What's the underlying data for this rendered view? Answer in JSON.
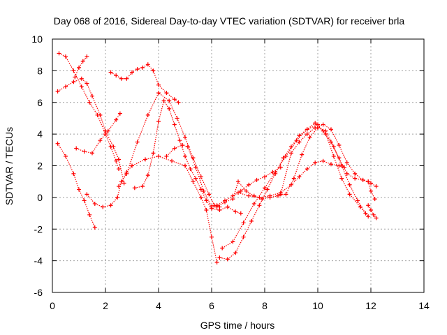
{
  "chart_data": {
    "type": "scatter",
    "title": "Day 068 of 2016, Sidereal Day-to-day VTEC variation (SDTVAR) for receiver brla",
    "xlabel": "GPS time / hours",
    "ylabel": "SDTVAR / TECUs",
    "xlim": [
      0,
      14
    ],
    "ylim": [
      -6,
      10
    ],
    "xticks": [
      "0",
      "2",
      "4",
      "6",
      "8",
      "10",
      "12",
      "14"
    ],
    "yticks": [
      "-6",
      "-4",
      "-2",
      "0",
      "2",
      "4",
      "6",
      "8",
      "10"
    ],
    "grid": true,
    "marker": "+",
    "color": "#ff0000",
    "series": [
      {
        "x": [
          0.25,
          0.5,
          0.8,
          1.1,
          1.4,
          1.7,
          2.0,
          2.2,
          2.4,
          2.5
        ],
        "y": [
          9.1,
          8.9,
          8.0,
          7.0,
          6.0,
          5.2,
          4.0,
          3.2,
          2.3,
          1.8
        ]
      },
      {
        "x": [
          0.2,
          0.5,
          0.8,
          1.1,
          1.3,
          1.5,
          1.8,
          2.0,
          2.3,
          2.5,
          2.7
        ],
        "y": [
          6.7,
          7.0,
          7.3,
          7.5,
          7.2,
          6.4,
          5.2,
          4.2,
          3.2,
          2.4,
          0.9
        ]
      },
      {
        "x": [
          0.85,
          1.0,
          1.15,
          1.3
        ],
        "y": [
          7.6,
          8.2,
          8.6,
          8.9
        ]
      },
      {
        "x": [
          0.2,
          0.5,
          0.8,
          1.0,
          1.2,
          1.4,
          1.6
        ],
        "y": [
          3.4,
          2.6,
          1.5,
          0.5,
          -0.2,
          -1.1,
          -1.9
        ]
      },
      {
        "x": [
          0.9,
          1.2,
          1.5,
          1.8,
          2.1,
          2.4,
          2.55
        ],
        "y": [
          3.1,
          2.9,
          2.8,
          3.6,
          4.2,
          4.9,
          5.3
        ]
      },
      {
        "x": [
          1.3,
          1.6,
          1.9,
          2.2,
          2.45,
          2.6,
          2.8,
          3.0,
          3.5,
          4.0,
          4.5,
          5.0,
          5.3,
          5.6,
          5.8,
          6.0,
          6.2
        ],
        "y": [
          0.2,
          -0.4,
          -0.6,
          -0.5,
          0.0,
          1.0,
          1.6,
          2.0,
          2.4,
          2.6,
          2.3,
          2.0,
          1.0,
          0.0,
          -0.8,
          -2.5,
          -4.1
        ]
      },
      {
        "x": [
          2.5,
          2.8,
          3.2,
          3.6,
          4.0,
          4.4,
          4.7,
          5.0,
          5.3,
          5.6,
          5.9,
          6.1,
          6.3
        ],
        "y": [
          0.7,
          1.5,
          3.5,
          5.2,
          6.6,
          6.1,
          5.0,
          3.8,
          2.5,
          1.3,
          0.2,
          -0.5,
          -0.6
        ]
      },
      {
        "x": [
          2.2,
          2.4,
          2.6,
          2.8,
          3.0,
          3.2,
          3.4,
          3.6,
          3.8,
          4.0,
          4.3,
          4.6,
          4.75
        ],
        "y": [
          7.9,
          7.7,
          7.5,
          7.5,
          7.9,
          8.1,
          8.2,
          8.4,
          8.0,
          7.1,
          6.6,
          6.2,
          6.0
        ]
      },
      {
        "x": [
          3.1,
          3.4,
          3.6,
          3.8,
          4.0,
          4.2,
          4.4,
          4.6,
          4.8,
          5.0,
          5.2,
          5.4,
          5.6,
          5.8,
          6.0,
          6.3,
          6.6,
          6.9,
          7.1
        ],
        "y": [
          0.6,
          0.7,
          1.4,
          2.8,
          4.8,
          6.1,
          5.6,
          4.6,
          3.6,
          2.6,
          1.8,
          1.2,
          0.5,
          -0.2,
          -0.7,
          -0.8,
          -0.6,
          -0.9,
          -1.0
        ]
      },
      {
        "x": [
          4.3,
          4.6,
          4.9,
          5.1,
          5.4,
          5.7,
          6.0,
          6.2,
          6.5,
          6.8,
          7.1,
          7.4,
          7.7,
          8.0,
          8.3,
          8.6
        ],
        "y": [
          2.6,
          3.1,
          3.3,
          3.2,
          1.9,
          0.4,
          -0.6,
          -0.5,
          -0.2,
          0.1,
          0.4,
          0.8,
          1.1,
          1.3,
          1.6,
          1.9
        ]
      },
      {
        "x": [
          6.3,
          6.6,
          6.9,
          7.2,
          7.5,
          7.8,
          8.1,
          8.4,
          8.7,
          9.0,
          9.3,
          9.6,
          9.9,
          10.2,
          10.5,
          10.8,
          11.1,
          11.4,
          11.7,
          11.9
        ],
        "y": [
          -3.8,
          -3.9,
          -3.5,
          -2.5,
          -1.5,
          -0.5,
          0.5,
          1.5,
          2.5,
          3.2,
          3.9,
          4.3,
          4.7,
          4.2,
          3.5,
          2.5,
          1.5,
          1.2,
          1.1,
          1.0
        ]
      },
      {
        "x": [
          6.4,
          6.8,
          7.2,
          7.6,
          8.0,
          8.4,
          8.8,
          9.2,
          9.6,
          10.0,
          10.3,
          10.6,
          10.9,
          11.2,
          11.6,
          11.9
        ],
        "y": [
          -3.2,
          -2.8,
          -1.6,
          -0.4,
          0.6,
          1.6,
          2.6,
          3.6,
          4.3,
          4.6,
          4.0,
          2.6,
          1.2,
          0.2,
          -0.6,
          -1.2
        ]
      },
      {
        "x": [
          6.2,
          6.5,
          6.8,
          7.0,
          7.3,
          7.6,
          7.9,
          8.2,
          8.5,
          8.8,
          9.1,
          9.4,
          9.7,
          10.0,
          10.3,
          10.6,
          10.9,
          11.2,
          11.5,
          11.8
        ],
        "y": [
          -0.6,
          -0.3,
          -0.1,
          1.0,
          0.4,
          0.1,
          -0.1,
          0.0,
          0.1,
          0.2,
          1.2,
          2.7,
          3.8,
          4.4,
          4.2,
          3.2,
          2.0,
          0.8,
          -0.2,
          -1.0
        ]
      },
      {
        "x": [
          7.0,
          7.4,
          7.8,
          8.2,
          8.6,
          9.0,
          9.3,
          9.6,
          9.9,
          10.2,
          10.5,
          10.8,
          11.0
        ],
        "y": [
          0.3,
          0.1,
          0.0,
          0.1,
          0.3,
          0.8,
          1.3,
          1.8,
          2.2,
          2.3,
          2.1,
          2.0,
          1.9
        ]
      },
      {
        "x": [
          8.6,
          9.0,
          9.3,
          9.6,
          9.9,
          10.2,
          10.5,
          10.8,
          11.1,
          11.4,
          11.7,
          12.0,
          12.2
        ],
        "y": [
          0.2,
          2.8,
          3.5,
          4.0,
          4.4,
          4.6,
          4.3,
          3.3,
          2.2,
          1.5,
          1.1,
          0.9,
          0.7
        ]
      },
      {
        "x": [
          11.9,
          12.0,
          12.15
        ],
        "y": [
          1.0,
          0.4,
          -0.1
        ]
      },
      {
        "x": [
          11.9,
          12.0,
          12.1,
          12.2
        ],
        "y": [
          -0.5,
          -0.8,
          -1.1,
          -1.3
        ]
      }
    ]
  }
}
